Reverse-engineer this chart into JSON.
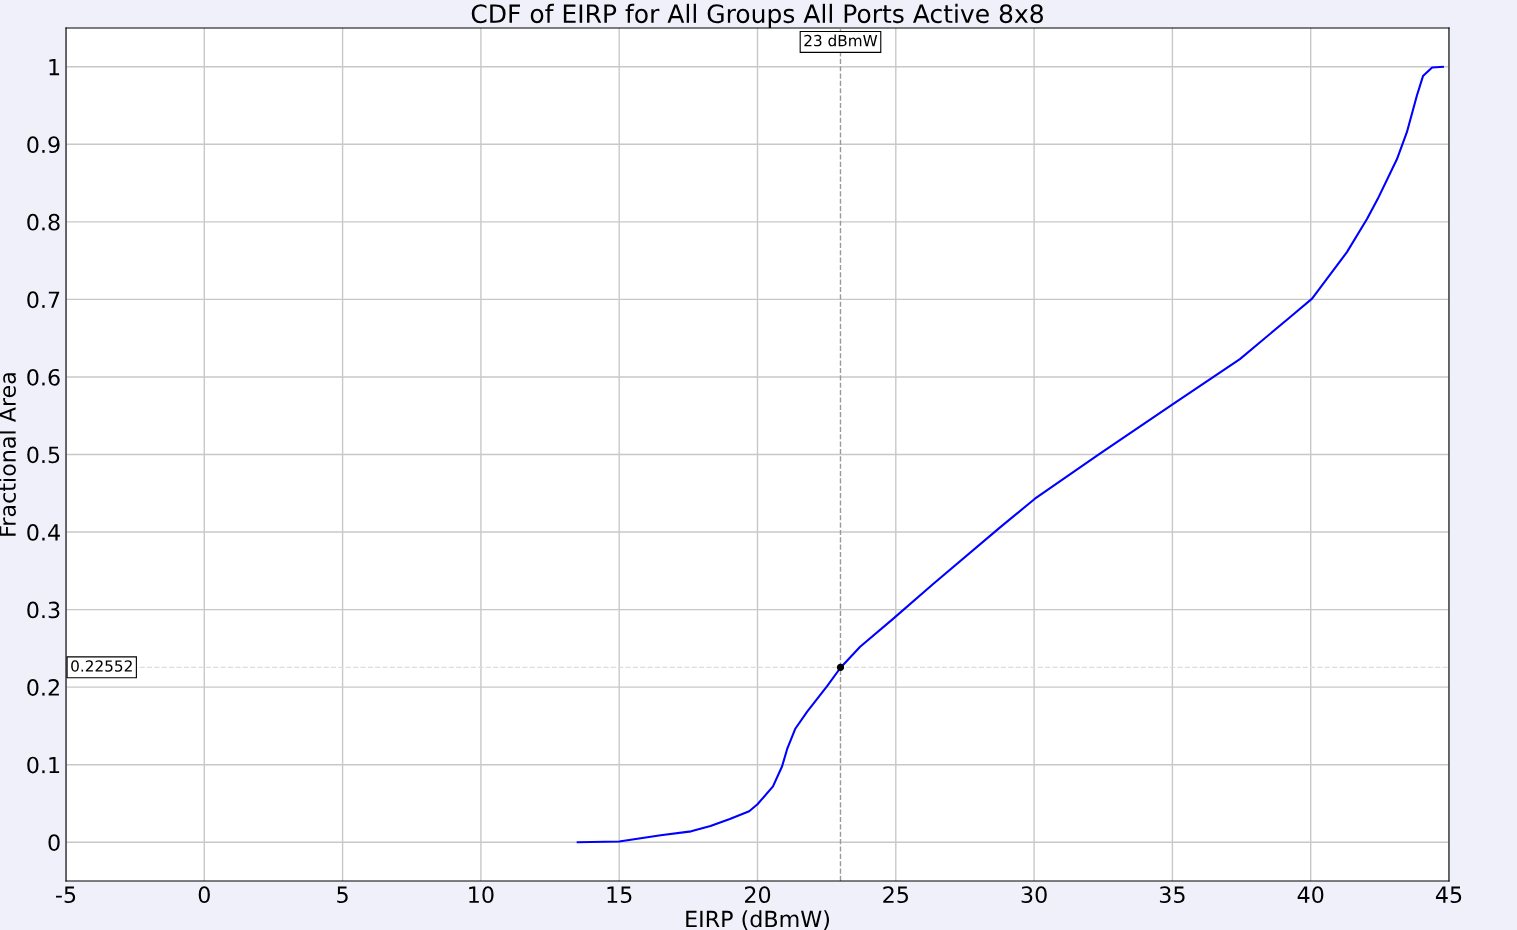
{
  "chart_data": {
    "type": "line",
    "title": "CDF of EIRP for All Groups All Ports Active 8x8",
    "xlabel": "EIRP (dBmW)",
    "ylabel": "Fractional Area",
    "xlim": [
      -5,
      45
    ],
    "ylim": [
      -0.05,
      1.05
    ],
    "xticks": [
      -5,
      0,
      5,
      10,
      15,
      20,
      25,
      30,
      35,
      40,
      45
    ],
    "yticks": [
      0,
      0.1,
      0.2,
      0.3,
      0.4,
      0.5,
      0.6,
      0.7,
      0.8,
      0.9,
      1
    ],
    "grid": true,
    "series": [
      {
        "color": "#0000ff",
        "x": [
          13.5,
          15.0,
          16.5,
          17.6,
          18.3,
          19.0,
          19.7,
          20.0,
          20.56,
          20.89,
          21.07,
          21.36,
          21.79,
          22.51,
          23.0,
          23.71,
          24.9,
          26.35,
          28.77,
          30.03,
          32.38,
          35.02,
          37.44,
          39.25,
          40.05,
          41.31,
          42.04,
          42.43,
          43.12,
          43.48,
          43.84,
          44.06,
          44.39,
          44.78
        ],
        "values": [
          0,
          0.001,
          0.009,
          0.014,
          0.021,
          0.03,
          0.04,
          0.049,
          0.072,
          0.098,
          0.12,
          0.146,
          0.168,
          0.201,
          0.225,
          0.252,
          0.288,
          0.333,
          0.406,
          0.443,
          0.501,
          0.565,
          0.623,
          0.677,
          0.701,
          0.761,
          0.804,
          0.83,
          0.881,
          0.916,
          0.963,
          0.988,
          0.999,
          1.0
        ]
      },
      {
        "type": "scatter",
        "color": "#000000",
        "x": [
          23
        ],
        "values": [
          0.22552
        ]
      }
    ],
    "ref_lines": [
      {
        "axis": "x",
        "value": 23,
        "label": "23 dBmW",
        "color": "#999999",
        "line_style": "dashed"
      },
      {
        "axis": "y",
        "value": 0.22552,
        "label": "0.22552",
        "color": "#dddddd",
        "line_style": "dashed"
      }
    ]
  }
}
